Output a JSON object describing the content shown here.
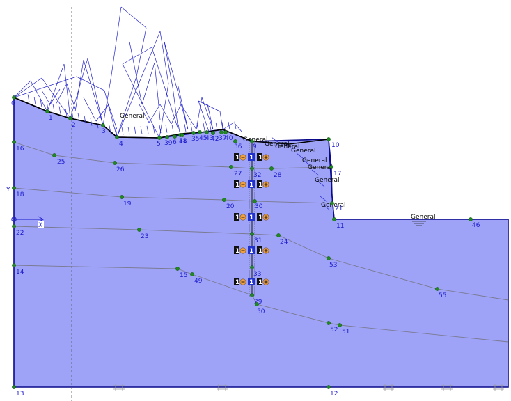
{
  "colors": {
    "soil_fill": "#9ea3f7",
    "boundary": "#0a0a8a",
    "layer_line": "#7a7a90",
    "node": "#1f8a1f",
    "node_label": "#1a1acc",
    "net": "#2222cc",
    "wall": "#6b6bb0",
    "badge_dark": "#111111",
    "badge_orange": "#f0a040",
    "badge_blue": "#2233cc"
  },
  "axes": {
    "x_label": "X",
    "y_label": "Y"
  },
  "loads": [
    {
      "label": "General"
    },
    {
      "label": "General"
    },
    {
      "label": "General"
    },
    {
      "label": "General"
    },
    {
      "label": "General"
    },
    {
      "label": "General"
    },
    {
      "label": "General"
    },
    {
      "label": "General"
    },
    {
      "label": "General"
    },
    {
      "label": "General"
    }
  ],
  "nodes": [
    "0",
    "1",
    "2",
    "3",
    "4",
    "5",
    "39",
    "6",
    "38",
    "41",
    "35",
    "45",
    "43",
    "42",
    "37",
    "40",
    "36",
    "9",
    "10",
    "16",
    "25",
    "26",
    "27",
    "32",
    "28",
    "17",
    "18",
    "19",
    "20",
    "30",
    "21",
    "11",
    "46",
    "22",
    "23",
    "31",
    "24",
    "14",
    "15",
    "49",
    "33",
    "29",
    "50",
    "53",
    "55",
    "52",
    "51",
    "13",
    "12"
  ],
  "anchors": [
    {
      "left": "1",
      "mid": "1",
      "right": "1"
    },
    {
      "left": "1",
      "mid": "1",
      "right": "1"
    },
    {
      "left": "1",
      "mid": "1",
      "right": "1"
    },
    {
      "left": "1",
      "mid": "1",
      "right": "1"
    },
    {
      "left": "1",
      "mid": "1",
      "right": "1"
    }
  ]
}
